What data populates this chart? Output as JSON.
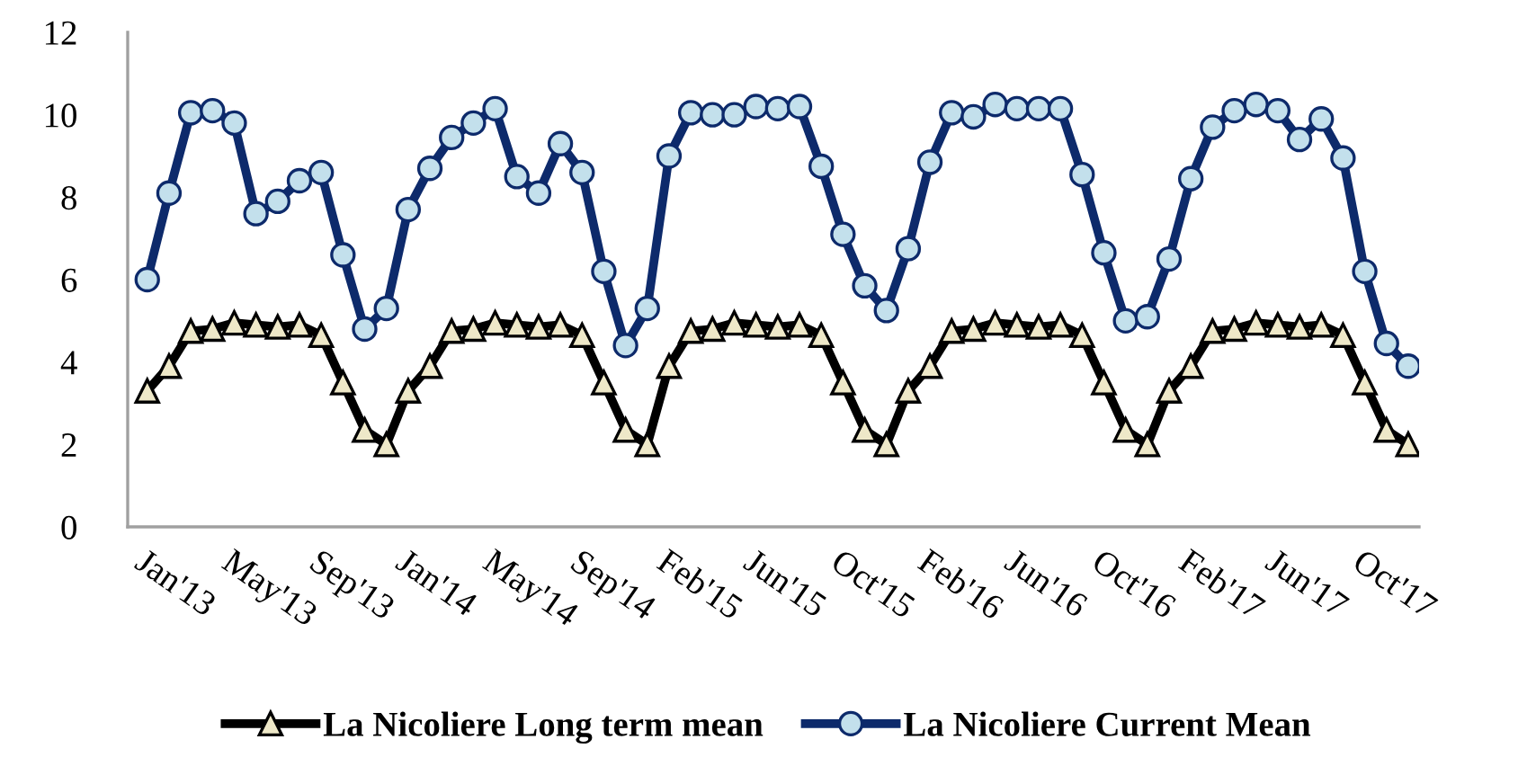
{
  "chart_data": {
    "type": "line",
    "categories": [
      "Jan'13",
      null,
      null,
      null,
      "May'13",
      null,
      null,
      null,
      "Sep'13",
      null,
      null,
      null,
      "Jan'14",
      null,
      null,
      null,
      "May'14",
      null,
      null,
      null,
      "Sep'14",
      null,
      null,
      null,
      "Feb'15",
      null,
      null,
      null,
      "Jun'15",
      null,
      null,
      null,
      "Oct'15",
      null,
      null,
      null,
      "Feb'16",
      null,
      null,
      null,
      "Jun'16",
      null,
      null,
      null,
      "Oct'16",
      null,
      null,
      null,
      "Feb'17",
      null,
      null,
      null,
      "Jun'17",
      null,
      null,
      null,
      "Oct'17",
      null,
      null
    ],
    "series": [
      {
        "name": "La Nicoliere Long term mean",
        "color": "#000000",
        "marker": "triangle",
        "values": [
          3.3,
          3.9,
          4.75,
          4.8,
          4.95,
          4.9,
          4.85,
          4.9,
          4.65,
          3.5,
          2.35,
          2.0,
          3.3,
          3.9,
          4.75,
          4.8,
          4.95,
          4.9,
          4.85,
          4.9,
          4.65,
          3.5,
          2.35,
          2.0,
          3.9,
          4.75,
          4.8,
          4.95,
          4.9,
          4.85,
          4.9,
          4.65,
          3.5,
          2.35,
          2.0,
          3.3,
          3.9,
          4.75,
          4.8,
          4.95,
          4.9,
          4.85,
          4.9,
          4.65,
          3.5,
          2.35,
          2.0,
          3.3,
          3.9,
          4.75,
          4.8,
          4.95,
          4.9,
          4.85,
          4.9,
          4.65,
          3.5,
          2.35,
          2.0
        ]
      },
      {
        "name": "La Nicoliere Current Mean",
        "color": "#0d2a6b",
        "marker": "circle",
        "values": [
          6.0,
          8.1,
          10.05,
          10.1,
          9.8,
          7.6,
          7.9,
          8.4,
          8.6,
          6.6,
          4.8,
          5.3,
          7.7,
          8.7,
          9.45,
          9.8,
          10.15,
          8.5,
          8.1,
          9.3,
          8.6,
          6.2,
          4.4,
          5.3,
          9.0,
          10.05,
          10.0,
          10.0,
          10.2,
          10.15,
          10.2,
          8.75,
          7.1,
          5.85,
          5.25,
          6.75,
          8.85,
          10.05,
          9.95,
          10.25,
          10.15,
          10.15,
          10.15,
          8.55,
          6.65,
          5.0,
          5.1,
          6.5,
          8.45,
          9.7,
          10.1,
          10.25,
          10.1,
          9.4,
          9.9,
          8.95,
          6.2,
          4.45,
          3.9
        ]
      }
    ],
    "ylim": [
      0,
      12
    ],
    "yticks": [
      0,
      2,
      4,
      6,
      8,
      10,
      12
    ],
    "grid": false,
    "legend": "bottom",
    "line_style": "solid"
  }
}
